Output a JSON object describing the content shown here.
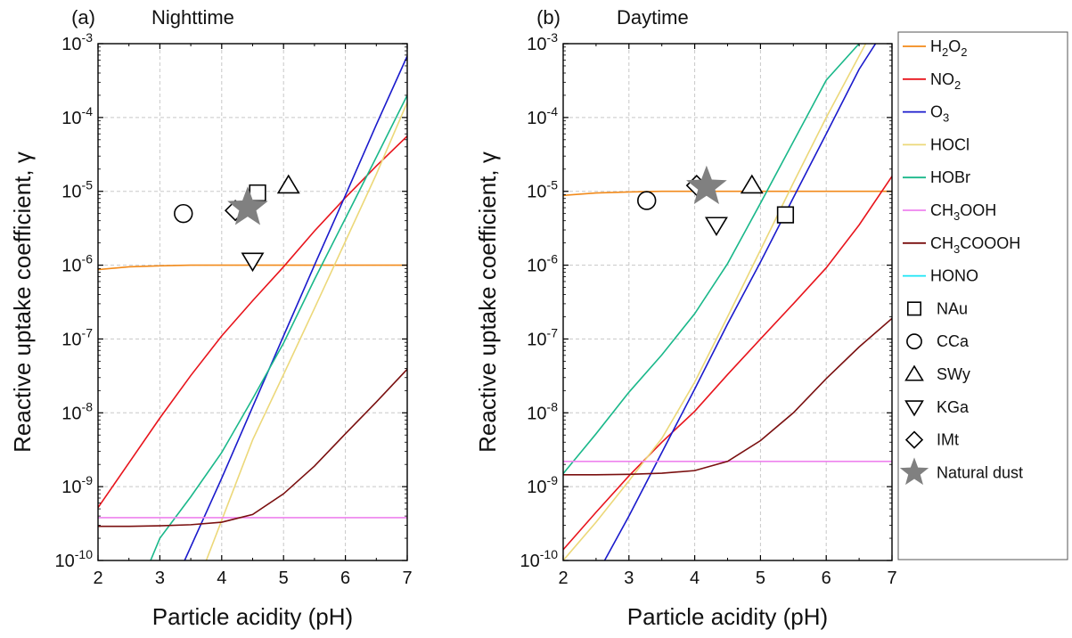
{
  "chart_data": [
    {
      "type": "line",
      "panel": "(a)",
      "title": "Nighttime",
      "xlabel": "Particle acidity (pH)",
      "ylabel": "Reactive uptake coefficient, γ",
      "xlim": [
        2,
        7
      ],
      "ylim": [
        1e-10,
        0.001
      ],
      "yscale": "log",
      "grid": true,
      "series": [
        {
          "name": "H2O2",
          "color": "#f28a1a",
          "x": [
            2,
            2.5,
            3,
            3.5,
            4,
            5,
            6,
            7
          ],
          "y": [
            8.7e-07,
            9.5e-07,
            9.8e-07,
            1e-06,
            1e-06,
            1e-06,
            1e-06,
            1e-06
          ]
        },
        {
          "name": "NO2",
          "color": "#e8141c",
          "x": [
            2,
            2.5,
            3,
            3.5,
            4,
            4.5,
            5,
            5.5,
            6,
            6.5,
            7
          ],
          "y": [
            5.2e-10,
            2.1e-09,
            8.5e-09,
            3.2e-08,
            1.1e-07,
            3.3e-07,
            9.5e-07,
            2.9e-06,
            8.2e-06,
            2.2e-05,
            5.6e-05
          ]
        },
        {
          "name": "O3",
          "color": "#1a1acc",
          "x": [
            3.4,
            4,
            4.5,
            5,
            5.5,
            6,
            6.5,
            7
          ],
          "y": [
            1e-10,
            1.3e-09,
            1.2e-08,
            1.1e-07,
            1e-06,
            8.8e-06,
            8e-05,
            0.00068
          ]
        },
        {
          "name": "HOCl",
          "color": "#ecd879",
          "x": [
            3.75,
            4,
            4.5,
            5,
            5.5,
            6,
            6.5,
            7
          ],
          "y": [
            1e-10,
            3.5e-10,
            4.3e-09,
            3.3e-08,
            2.6e-07,
            2.1e-06,
            1.7e-05,
            0.00016
          ]
        },
        {
          "name": "HOBr",
          "color": "#1ab88a",
          "x": [
            2.85,
            3,
            3.5,
            4,
            4.5,
            5,
            5.5,
            6,
            6.5,
            7
          ],
          "y": [
            1e-10,
            2e-10,
            7.3e-10,
            2.9e-09,
            1.55e-08,
            8.8e-08,
            6.4e-07,
            4.3e-06,
            2.9e-05,
            0.0002
          ]
        },
        {
          "name": "CH3OOH",
          "color": "#ee82ee",
          "x": [
            2,
            7
          ],
          "y": [
            3.8e-10,
            3.8e-10
          ]
        },
        {
          "name": "CH3COOOH",
          "color": "#7a0f0f",
          "x": [
            2,
            2.5,
            3,
            3.5,
            4,
            4.5,
            5,
            5.5,
            6,
            6.5,
            7
          ],
          "y": [
            2.9e-10,
            2.9e-10,
            2.95e-10,
            3.05e-10,
            3.3e-10,
            4.2e-10,
            8e-10,
            1.9e-09,
            5.2e-09,
            1.4e-08,
            3.9e-08
          ]
        },
        {
          "name": "HONO",
          "color": "#1ae5f5",
          "x": [],
          "y": []
        }
      ],
      "markers": [
        {
          "name": "NAu",
          "shape": "square",
          "x": 4.58,
          "y": 9.5e-06
        },
        {
          "name": "CCa",
          "shape": "circle",
          "x": 3.38,
          "y": 5e-06
        },
        {
          "name": "SWy",
          "shape": "triangle-up",
          "x": 5.08,
          "y": 1.2e-05
        },
        {
          "name": "KGa",
          "shape": "triangle-down",
          "x": 4.5,
          "y": 1.15e-06
        },
        {
          "name": "IMt",
          "shape": "diamond",
          "x": 4.22,
          "y": 5.5e-06
        },
        {
          "name": "Natural dust",
          "shape": "star",
          "x": 4.42,
          "y": 6e-06
        }
      ]
    },
    {
      "type": "line",
      "panel": "(b)",
      "title": "Daytime",
      "xlabel": "Particle acidity (pH)",
      "ylabel": "Reactive uptake coefficient, γ",
      "xlim": [
        2,
        7
      ],
      "ylim": [
        1e-10,
        0.001
      ],
      "yscale": "log",
      "grid": true,
      "series": [
        {
          "name": "H2O2",
          "color": "#f28a1a",
          "x": [
            2,
            2.5,
            3,
            3.5,
            4,
            5,
            6,
            7
          ],
          "y": [
            8.8e-06,
            9.5e-06,
            9.8e-06,
            1e-05,
            1e-05,
            1e-05,
            1e-05,
            1e-05
          ]
        },
        {
          "name": "NO2",
          "color": "#e8141c",
          "x": [
            2,
            2.5,
            3,
            3.5,
            4,
            4.5,
            5,
            5.5,
            6,
            6.5,
            7
          ],
          "y": [
            1.4e-10,
            4.5e-10,
            1.4e-09,
            4e-09,
            1.05e-08,
            3.3e-08,
            1e-07,
            3e-07,
            9.2e-07,
            3.5e-06,
            1.6e-05
          ]
        },
        {
          "name": "O3",
          "color": "#1a1acc",
          "x": [
            2.63,
            3,
            3.5,
            4,
            4.5,
            5,
            5.5,
            6,
            6.5,
            6.75
          ],
          "y": [
            1e-10,
            4e-10,
            2.9e-09,
            2.1e-08,
            1.6e-07,
            1.1e-06,
            8.2e-06,
            6e-05,
            0.00045,
            0.001
          ]
        },
        {
          "name": "HOCl",
          "color": "#ecd879",
          "x": [
            2,
            2.5,
            3,
            3.5,
            4,
            4.5,
            5,
            5.5,
            6,
            6.6
          ],
          "y": [
            1e-10,
            3.3e-10,
            1.2e-09,
            4.5e-09,
            2.6e-08,
            2e-07,
            1.6e-06,
            1.3e-05,
            0.0001,
            0.001
          ]
        },
        {
          "name": "HOBr",
          "color": "#1ab88a",
          "x": [
            2,
            2.5,
            3,
            3.5,
            4,
            4.5,
            5,
            5.5,
            6,
            6.5
          ],
          "y": [
            1.5e-09,
            5.2e-09,
            1.9e-08,
            6.1e-08,
            2.2e-07,
            1.05e-06,
            6.9e-06,
            4.7e-05,
            0.00032,
            0.001
          ]
        },
        {
          "name": "CH3OOH",
          "color": "#ee82ee",
          "x": [
            2,
            7
          ],
          "y": [
            2.2e-09,
            2.2e-09
          ]
        },
        {
          "name": "CH3COOOH",
          "color": "#7a0f0f",
          "x": [
            2,
            2.5,
            3,
            3.5,
            4,
            4.5,
            5,
            5.5,
            6,
            6.5,
            7
          ],
          "y": [
            1.45e-09,
            1.45e-09,
            1.47e-09,
            1.52e-09,
            1.65e-09,
            2.2e-09,
            4.2e-09,
            1e-08,
            2.9e-08,
            7.8e-08,
            1.9e-07
          ]
        },
        {
          "name": "HONO",
          "color": "#1ae5f5",
          "x": [],
          "y": []
        }
      ],
      "markers": [
        {
          "name": "NAu",
          "shape": "square",
          "x": 5.38,
          "y": 4.8e-06
        },
        {
          "name": "CCa",
          "shape": "circle",
          "x": 3.27,
          "y": 7.5e-06
        },
        {
          "name": "SWy",
          "shape": "triangle-up",
          "x": 4.87,
          "y": 1.2e-05
        },
        {
          "name": "KGa",
          "shape": "triangle-down",
          "x": 4.33,
          "y": 3.5e-06
        },
        {
          "name": "IMt",
          "shape": "diamond",
          "x": 4.03,
          "y": 1.2e-05
        },
        {
          "name": "Natural dust",
          "shape": "star",
          "x": 4.18,
          "y": 1.15e-05
        }
      ]
    }
  ],
  "legend": {
    "placement": "right",
    "lines": [
      {
        "key": "h2o2",
        "base": "H",
        "parts": [
          [
            "H",
            false
          ],
          [
            "2",
            true
          ],
          [
            "O",
            false
          ],
          [
            "2",
            true
          ]
        ],
        "label": "H2O2",
        "color": "#f28a1a"
      },
      {
        "key": "no2",
        "parts": [
          [
            "NO",
            false
          ],
          [
            "2",
            true
          ]
        ],
        "label": "NO2",
        "color": "#e8141c"
      },
      {
        "key": "o3",
        "parts": [
          [
            "O",
            false
          ],
          [
            "3",
            true
          ]
        ],
        "label": "O3",
        "color": "#1a1acc"
      },
      {
        "key": "hocl",
        "parts": [
          [
            "HOCl",
            false
          ]
        ],
        "label": "HOCl",
        "color": "#ecd879"
      },
      {
        "key": "hobr",
        "parts": [
          [
            "HOBr",
            false
          ]
        ],
        "label": "HOBr",
        "color": "#1ab88a"
      },
      {
        "key": "ch3ooh",
        "parts": [
          [
            "CH",
            false
          ],
          [
            "3",
            true
          ],
          [
            "OOH",
            false
          ]
        ],
        "label": "CH3OOH",
        "color": "#ee82ee"
      },
      {
        "key": "ch3coooh",
        "parts": [
          [
            "CH",
            false
          ],
          [
            "3",
            true
          ],
          [
            "COOOH",
            false
          ]
        ],
        "label": "CH3COOOH",
        "color": "#7a0f0f"
      },
      {
        "key": "hono",
        "parts": [
          [
            "HONO",
            false
          ]
        ],
        "label": "HONO",
        "color": "#1ae5f5"
      }
    ],
    "symbols": [
      {
        "shape": "square",
        "label": "NAu"
      },
      {
        "shape": "circle",
        "label": "CCa"
      },
      {
        "shape": "triangle-up",
        "label": "SWy"
      },
      {
        "shape": "triangle-down",
        "label": "KGa"
      },
      {
        "shape": "diamond",
        "label": "IMt"
      },
      {
        "shape": "star",
        "label": "Natural dust",
        "color": "#808080"
      }
    ]
  }
}
